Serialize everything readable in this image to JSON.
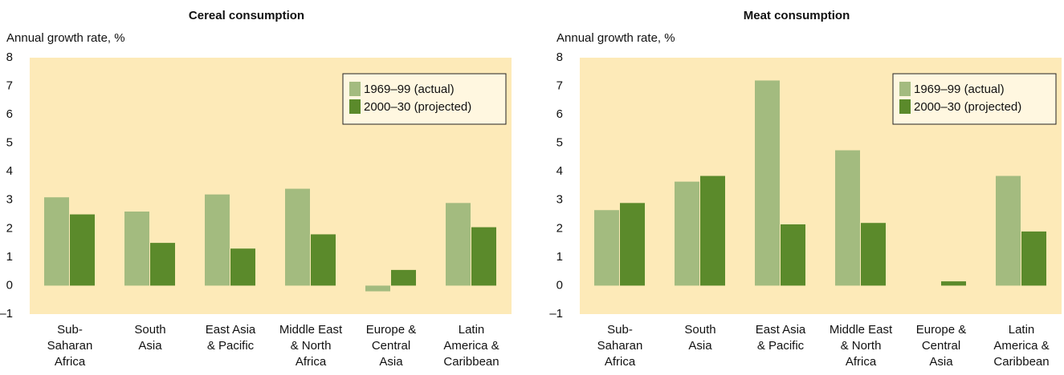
{
  "chart_data": [
    {
      "type": "bar",
      "title": "Cereal consumption",
      "y_label": "Annual growth rate, %",
      "categories": [
        [
          "Sub-",
          "Saharan",
          "Africa"
        ],
        [
          "South",
          "Asia"
        ],
        [
          "East Asia",
          "& Pacific"
        ],
        [
          "Middle East",
          "& North",
          "Africa"
        ],
        [
          "Europe &",
          "Central",
          "Asia"
        ],
        [
          "Latin",
          "America &",
          "Caribbean"
        ]
      ],
      "series": [
        {
          "name": "1969–99 (actual)",
          "color": "#a3bb7f",
          "values": [
            3.1,
            2.6,
            3.2,
            3.4,
            -0.2,
            2.9
          ]
        },
        {
          "name": "2000–30 (projected)",
          "color": "#5b8a2b",
          "values": [
            2.5,
            1.5,
            1.3,
            1.8,
            0.55,
            2.05
          ]
        }
      ],
      "ylim": [
        -1,
        8
      ],
      "yticks": [
        {
          "value": -1,
          "label": "–1"
        },
        0,
        1,
        2,
        3,
        4,
        5,
        6,
        7,
        8
      ],
      "grid": false,
      "legend": "upper right",
      "background": "#fdeab8"
    },
    {
      "type": "bar",
      "title": "Meat consumption",
      "y_label": "Annual growth rate, %",
      "categories": [
        [
          "Sub-",
          "Saharan",
          "Africa"
        ],
        [
          "South",
          "Asia"
        ],
        [
          "East Asia",
          "& Pacific"
        ],
        [
          "Middle East",
          "& North",
          "Africa"
        ],
        [
          "Europe &",
          "Central",
          "Asia"
        ],
        [
          "Latin",
          "America &",
          "Caribbean"
        ]
      ],
      "series": [
        {
          "name": "1969–99 (actual)",
          "color": "#a3bb7f",
          "values": [
            2.65,
            3.65,
            7.2,
            4.75,
            0,
            3.85
          ]
        },
        {
          "name": "2000–30 (projected)",
          "color": "#5b8a2b",
          "values": [
            2.9,
            3.85,
            2.15,
            2.2,
            0.15,
            1.9
          ]
        }
      ],
      "ylim": [
        -1,
        8
      ],
      "yticks": [
        {
          "value": -1,
          "label": "–1"
        },
        0,
        1,
        2,
        3,
        4,
        5,
        6,
        7,
        8
      ],
      "grid": false,
      "legend": "upper right",
      "background": "#fdeab8"
    }
  ]
}
